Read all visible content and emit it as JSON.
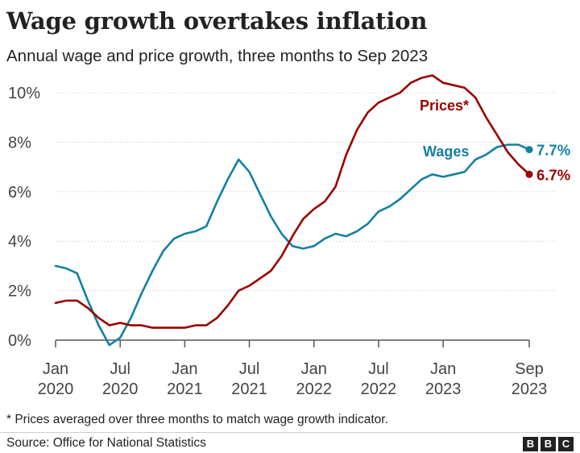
{
  "title": "Wage growth overtakes inflation",
  "subtitle": "Annual wage and price growth, three months to Sep 2023",
  "footnote": "* Prices averaged over three months to match wage growth indicator.",
  "source": "Source: Office for National Statistics",
  "logo": [
    "B",
    "B",
    "C"
  ],
  "colors": {
    "wages": "#1380a1",
    "prices": "#990000",
    "grid": "#dcdcdc",
    "axis": "#555555"
  },
  "chart_data": {
    "type": "line",
    "title": "Wage growth overtakes inflation",
    "subtitle": "Annual wage and price growth, three months to Sep 2023",
    "ylim": [
      0,
      10.8
    ],
    "yticks": [
      0,
      2,
      4,
      6,
      8,
      10
    ],
    "ytick_labels": [
      "0%",
      "2%",
      "4%",
      "6%",
      "8%",
      "10%"
    ],
    "grid": true,
    "x": [
      "2020-01",
      "2020-02",
      "2020-03",
      "2020-04",
      "2020-05",
      "2020-06",
      "2020-07",
      "2020-08",
      "2020-09",
      "2020-10",
      "2020-11",
      "2020-12",
      "2021-01",
      "2021-02",
      "2021-03",
      "2021-04",
      "2021-05",
      "2021-06",
      "2021-07",
      "2021-08",
      "2021-09",
      "2021-10",
      "2021-11",
      "2021-12",
      "2022-01",
      "2022-02",
      "2022-03",
      "2022-04",
      "2022-05",
      "2022-06",
      "2022-07",
      "2022-08",
      "2022-09",
      "2022-10",
      "2022-11",
      "2022-12",
      "2023-01",
      "2023-02",
      "2023-03",
      "2023-04",
      "2023-05",
      "2023-06",
      "2023-07",
      "2023-08",
      "2023-09"
    ],
    "xticks": [
      {
        "x": "2020-01",
        "line1": "Jan",
        "line2": "2020"
      },
      {
        "x": "2020-07",
        "line1": "Jul",
        "line2": "2020"
      },
      {
        "x": "2021-01",
        "line1": "Jan",
        "line2": "2021"
      },
      {
        "x": "2021-07",
        "line1": "Jul",
        "line2": "2021"
      },
      {
        "x": "2022-01",
        "line1": "Jan",
        "line2": "2022"
      },
      {
        "x": "2022-07",
        "line1": "Jul",
        "line2": "2022"
      },
      {
        "x": "2023-01",
        "line1": "Jan",
        "line2": "2023"
      },
      {
        "x": "2023-09",
        "line1": "Sep",
        "line2": "2023"
      }
    ],
    "series": [
      {
        "name": "Wages",
        "color": "#1380a1",
        "values": [
          3.0,
          2.9,
          2.7,
          1.6,
          0.6,
          -0.2,
          0.1,
          0.9,
          1.9,
          2.8,
          3.6,
          4.1,
          4.3,
          4.4,
          4.6,
          5.6,
          6.5,
          7.3,
          6.8,
          5.9,
          5.0,
          4.3,
          3.8,
          3.7,
          3.8,
          4.1,
          4.3,
          4.2,
          4.4,
          4.7,
          5.2,
          5.4,
          5.7,
          6.1,
          6.5,
          6.7,
          6.6,
          6.7,
          6.8,
          7.3,
          7.5,
          7.8,
          7.9,
          7.9,
          7.7
        ],
        "end_label": "7.7%"
      },
      {
        "name": "Prices*",
        "color": "#990000",
        "values": [
          1.5,
          1.6,
          1.6,
          1.3,
          0.9,
          0.6,
          0.7,
          0.6,
          0.6,
          0.5,
          0.5,
          0.5,
          0.5,
          0.6,
          0.6,
          0.9,
          1.4,
          2.0,
          2.2,
          2.5,
          2.8,
          3.4,
          4.2,
          4.9,
          5.3,
          5.6,
          6.2,
          7.5,
          8.5,
          9.2,
          9.6,
          9.8,
          10.0,
          10.4,
          10.6,
          10.7,
          10.4,
          10.3,
          10.2,
          9.8,
          9.0,
          8.3,
          7.6,
          7.1,
          6.7
        ],
        "end_label": "6.7%"
      }
    ]
  }
}
